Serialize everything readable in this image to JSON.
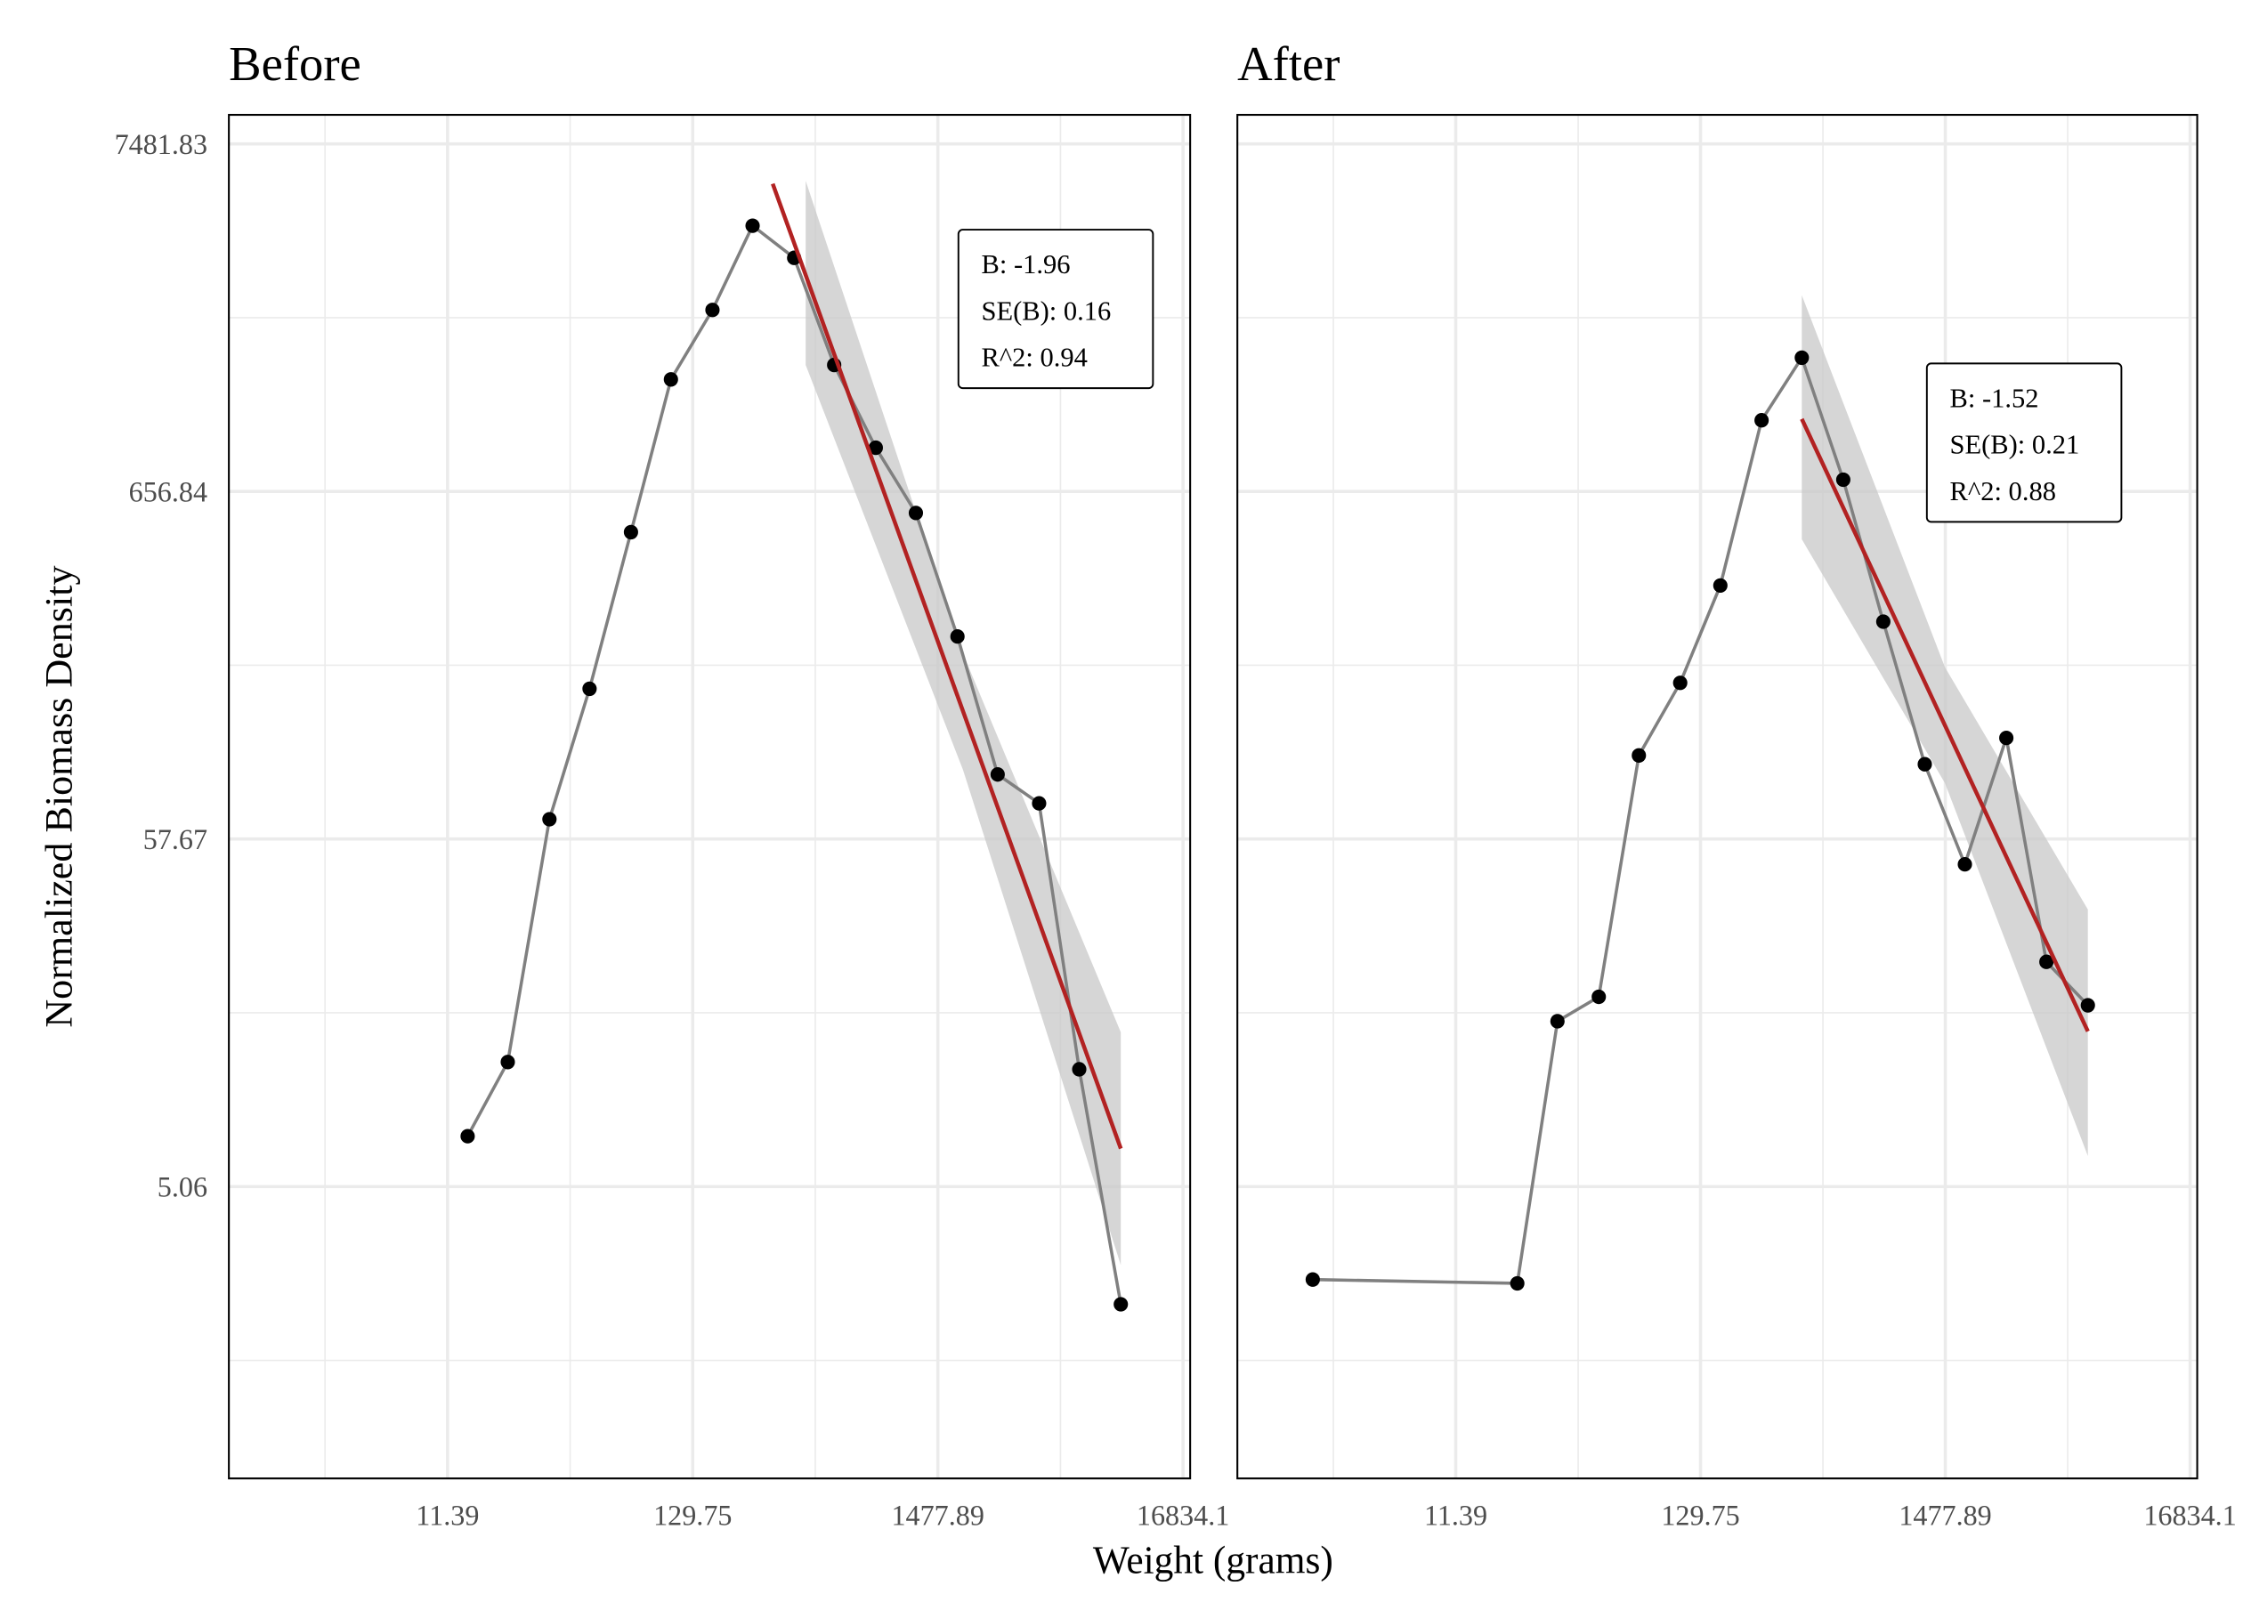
{
  "axis_titles": {
    "x": "Weight (grams)",
    "y": "Normalized Biomass Density"
  },
  "chart_data": [
    {
      "type": "line",
      "title": "Before",
      "x": [
        13.9,
        20.7,
        31.3,
        46.6,
        70.3,
        104.5,
        157.8,
        235,
        355,
        528,
        798,
        1188,
        1795,
        2675,
        4036,
        6010,
        9080
      ],
      "y": [
        7.2,
        12.1,
        66.2,
        165,
        494,
        1439,
        2340,
        4220,
        3370,
        1592,
        892,
        565,
        238,
        90.6,
        74,
        11.5,
        2.22
      ],
      "color": "#000000",
      "line_color": "#808080",
      "xlim": [
        1.3,
        18070
      ],
      "xticks": [
        11.39,
        129.75,
        1477.89,
        16834.1
      ],
      "ylim": [
        0.656,
        9170
      ],
      "yticks": [
        5.06,
        57.67,
        656.84,
        7481.83
      ],
      "log_x": true,
      "log_y": true,
      "grid": true,
      "fit": {
        "x": [
          287,
          9080
        ],
        "y": [
          5660,
          6.6
        ],
        "color": "#b22222"
      },
      "band": {
        "x": [
          398,
          1897,
          9080
        ],
        "upper": [
          5780,
          211,
          14.9
        ],
        "lower": [
          1592,
          93.5,
          2.92
        ],
        "color": "#c8c8c8"
      },
      "stats": [
        "B: -1.96",
        "SE(B): 0.16",
        "R^2: 0.94"
      ]
    },
    {
      "type": "line",
      "title": "After",
      "x": [
        2.75,
        21.0,
        31.3,
        47.2,
        70.3,
        106,
        158,
        238,
        355,
        536,
        798,
        1205,
        1795,
        2710,
        4036,
        6095
      ],
      "y": [
        2.64,
        2.57,
        16.1,
        19.1,
        103.5,
        172,
        340,
        1081,
        1675,
        713,
        264,
        97.3,
        48.3,
        117,
        24.4,
        18.0
      ],
      "color": "#000000",
      "line_color": "#808080",
      "xlim": [
        1.3,
        18070
      ],
      "xticks": [
        11.39,
        129.75,
        1477.89,
        16834.1
      ],
      "ylim": [
        0.656,
        9170
      ],
      "log_x": true,
      "log_y": true,
      "grid": true,
      "fit": {
        "x": [
          355,
          6095
        ],
        "y": [
          1091,
          15.0
        ],
        "color": "#b22222"
      },
      "band": {
        "x": [
          355,
          1472,
          6095
        ],
        "upper": [
          2594,
          192,
          35.2
        ],
        "lower": [
          470,
          85.3,
          6.27
        ],
        "color": "#c8c8c8"
      },
      "stats": [
        "B: -1.52",
        "SE(B): 0.21",
        "R^2: 0.88"
      ]
    }
  ]
}
